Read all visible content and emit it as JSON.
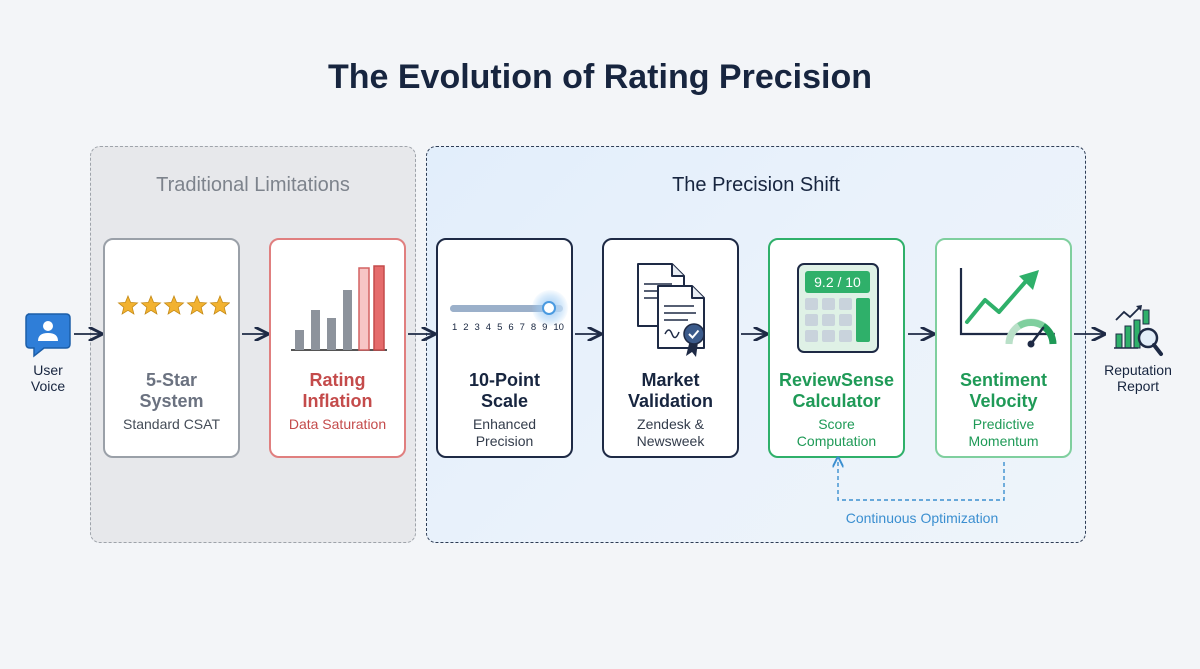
{
  "title": "The Evolution of Rating Precision",
  "groups": {
    "traditional": "Traditional Limitations",
    "precision": "The Precision Shift"
  },
  "start": {
    "label_line1": "User",
    "label_line2": "Voice",
    "icon": "user-message-icon"
  },
  "end": {
    "label_line1": "Reputation",
    "label_line2": "Report",
    "icon": "report-chart-magnifier-icon"
  },
  "cards": [
    {
      "title_line1": "5-Star",
      "title_line2": "System",
      "sub_line1": "Standard CSAT",
      "sub_line2": "",
      "icon": "five-stars-icon"
    },
    {
      "title_line1": "Rating",
      "title_line2": "Inflation",
      "sub_line1": "Data Saturation",
      "sub_line2": "",
      "icon": "inflated-bars-icon"
    },
    {
      "title_line1": "10-Point",
      "title_line2": "Scale",
      "sub_line1": "Enhanced",
      "sub_line2": "Precision",
      "icon": "slider-scale-icon"
    },
    {
      "title_line1": "Market",
      "title_line2": "Validation",
      "sub_line1": "Zendesk &",
      "sub_line2": "Newsweek",
      "icon": "certified-documents-icon"
    },
    {
      "title_line1": "ReviewSense",
      "title_line2": "Calculator",
      "sub_line1": "Score",
      "sub_line2": "Computation",
      "icon": "calculator-icon"
    },
    {
      "title_line1": "Sentiment",
      "title_line2": "Velocity",
      "sub_line1": "Predictive",
      "sub_line2": "Momentum",
      "icon": "trend-gauge-icon"
    }
  ],
  "slider": {
    "ticks": [
      "1",
      "2",
      "3",
      "4",
      "5",
      "6",
      "7",
      "8",
      "9",
      "10"
    ],
    "value": 9
  },
  "calculator": {
    "display": "9.2 / 10"
  },
  "loop_label": "Continuous Optimization",
  "colors": {
    "navy": "#17253f",
    "red": "#c44b4b",
    "green": "#1f9a57",
    "blue": "#3b8fd0",
    "gray": "#6b7280",
    "star": "#f2b230"
  }
}
